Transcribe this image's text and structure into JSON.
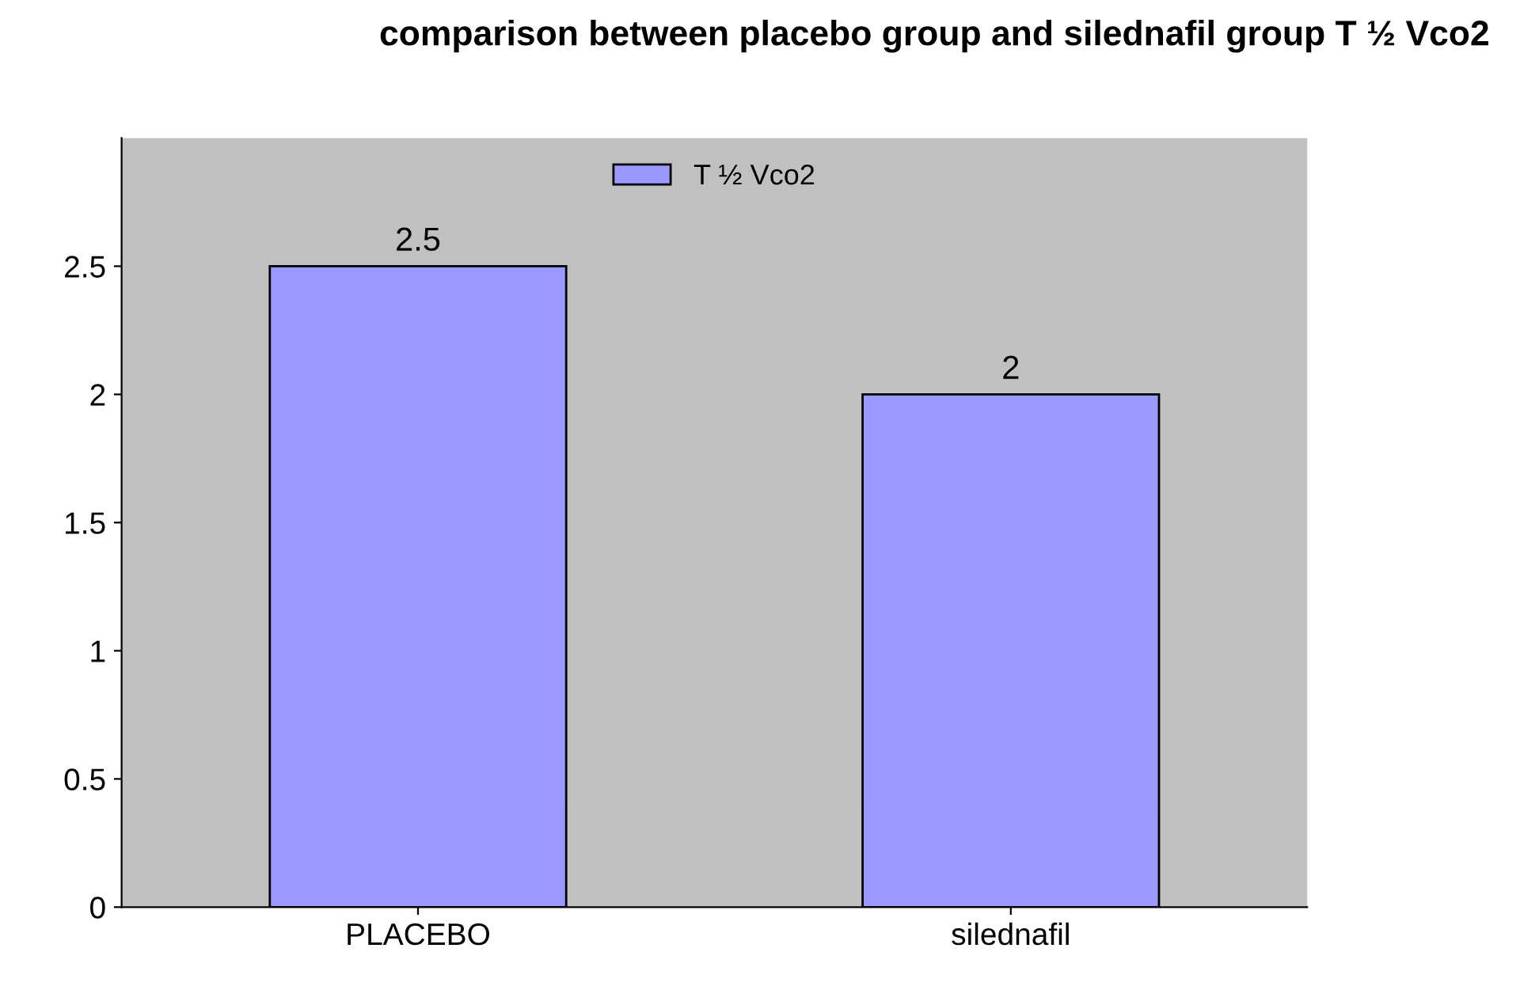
{
  "chart_data": {
    "type": "bar",
    "title": "comparison between placebo group and silednafil group T ½ Vco2",
    "categories": [
      "PLACEBO",
      "silednafil"
    ],
    "series": [
      {
        "name": "T ½ Vco2",
        "color": "#9999ff",
        "values": [
          2.5,
          2
        ]
      }
    ],
    "ylim": [
      0,
      3
    ],
    "yticks": [
      0,
      0.5,
      1,
      1.5,
      2,
      2.5
    ],
    "grid": false,
    "legend": "top",
    "data_labels": true
  }
}
